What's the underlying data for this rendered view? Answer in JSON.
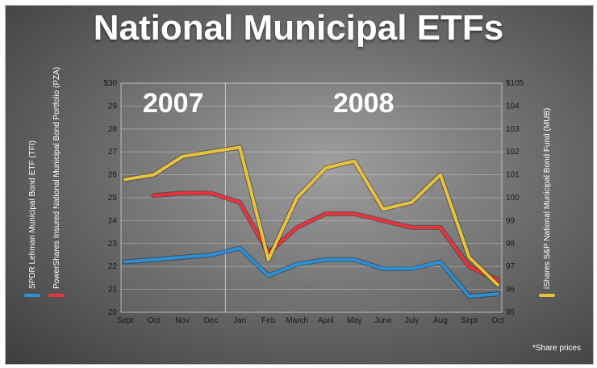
{
  "chart_data": {
    "type": "line",
    "title": "National Municipal ETFs",
    "categories": [
      "Sept",
      "Oct",
      "Nov",
      "Dec",
      "Jan",
      "Feb",
      "March",
      "April",
      "May",
      "June",
      "July",
      "Aug",
      "Sept",
      "Oct"
    ],
    "years": [
      {
        "label": "2007",
        "start_index": 0
      },
      {
        "label": "2008",
        "start_index": 4
      }
    ],
    "left_axis": {
      "ylim": [
        20,
        30
      ],
      "ticks": [
        20,
        21,
        22,
        23,
        24,
        25,
        26,
        27,
        28,
        29,
        30
      ],
      "tick_labels": [
        "20",
        "21",
        "22",
        "23",
        "24",
        "25",
        "26",
        "27",
        "28",
        "29",
        "$30"
      ]
    },
    "right_axis": {
      "ylim": [
        95,
        105
      ],
      "ticks": [
        95,
        96,
        97,
        98,
        99,
        100,
        101,
        102,
        103,
        104,
        105
      ],
      "tick_labels": [
        "95",
        "96",
        "97",
        "98",
        "99",
        "100",
        "101",
        "102",
        "103",
        "104",
        "$105"
      ]
    },
    "series": [
      {
        "name": "SPDR Lehman Municipal Bond ETF (TFI)",
        "axis": "left",
        "color": "#2a8fd6",
        "values": [
          22.2,
          22.3,
          22.4,
          22.5,
          22.8,
          21.6,
          22.1,
          22.3,
          22.3,
          21.9,
          21.9,
          22.2,
          20.7,
          20.8
        ]
      },
      {
        "name": "PowerShares Insured National Municipal Bond Portfolio (PZA)",
        "axis": "left",
        "color": "#e8323c",
        "values": [
          null,
          25.1,
          25.2,
          25.2,
          24.8,
          22.6,
          23.7,
          24.3,
          24.3,
          24.0,
          23.7,
          23.7,
          22.0,
          21.4
        ]
      },
      {
        "name": "iShares S&P National Municipal Bond Fund (MUB)",
        "axis": "right",
        "color": "#e8c23a",
        "values": [
          100.8,
          101.0,
          101.8,
          102.0,
          102.2,
          97.3,
          100.0,
          101.3,
          101.6,
          99.5,
          99.8,
          101.0,
          97.4,
          96.2
        ]
      }
    ],
    "note": "*Share prices"
  }
}
